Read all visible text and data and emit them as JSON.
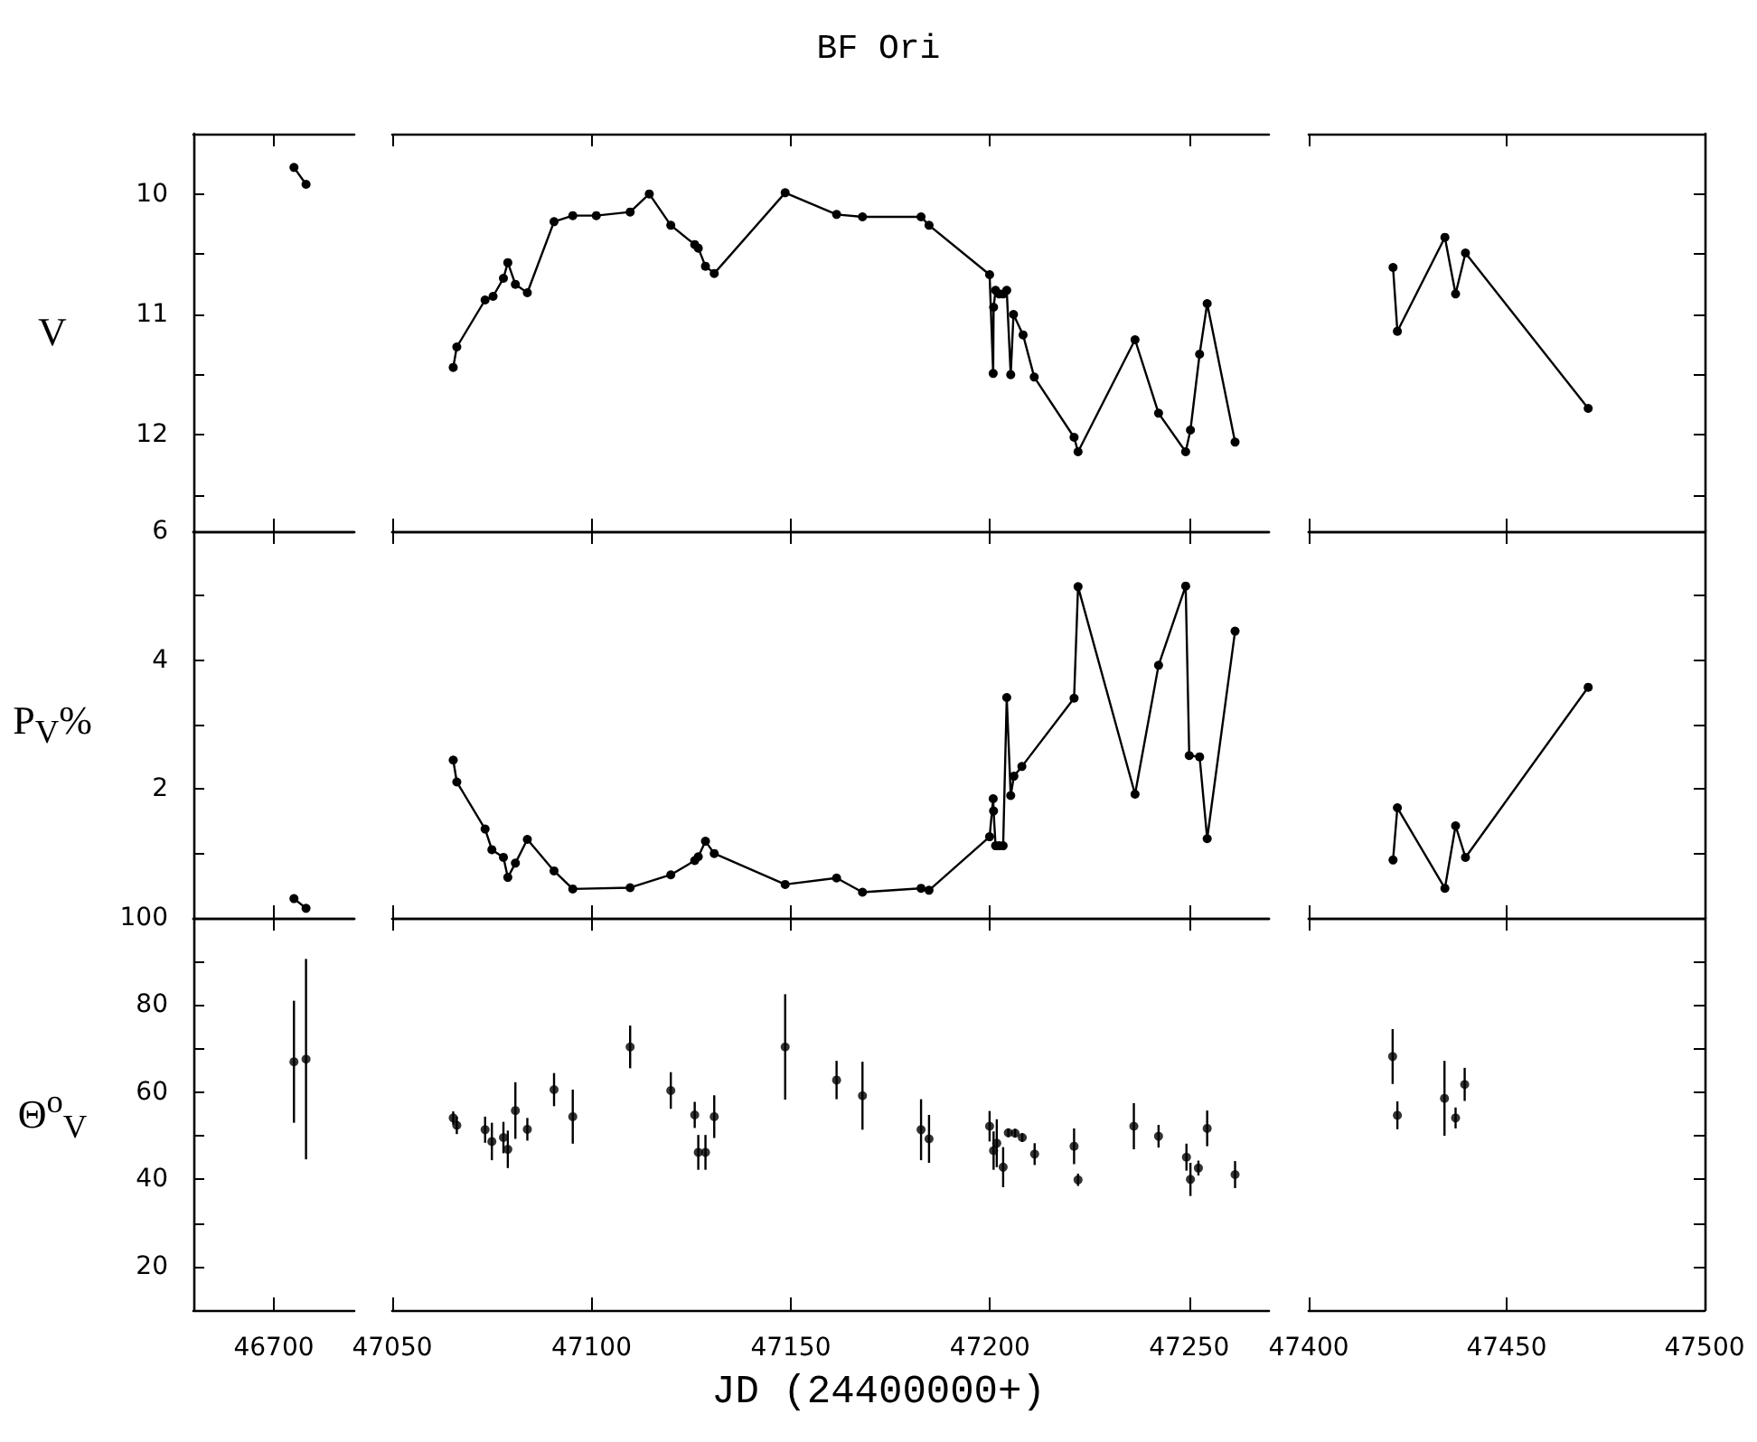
{
  "chart_data": [
    {
      "type": "line",
      "ylabel": "V",
      "categories": [
        null,
        null,
        null,
        null,
        null,
        null,
        null,
        null,
        null,
        null,
        null,
        null,
        null,
        null,
        null,
        null,
        null,
        null,
        null,
        null,
        null,
        null,
        null,
        null,
        null,
        null,
        null,
        null,
        null,
        null,
        null,
        null,
        null,
        null,
        null,
        null,
        null,
        null,
        null,
        null,
        null
      ],
      "values": [
        null,
        null,
        null,
        null,
        null,
        null,
        null,
        null,
        null,
        null,
        null,
        null,
        null,
        null,
        null,
        null,
        null,
        null,
        null,
        null,
        null,
        null,
        null,
        null,
        null,
        9.78,
        null,
        null,
        9.92,
        null,
        null,
        null,
        null,
        null,
        null,
        null,
        null,
        null,
        null,
        null,
        null
      ],
      "color": "#000000",
      "marker": "circle",
      "ylim": [
        12.8,
        9.5
      ],
      "yticks": [
        10,
        {
          "value": 10.5,
          "label": null
        },
        11,
        {
          "value": 11.5,
          "label": null
        },
        12,
        {
          "value": 12.5,
          "label": null
        }
      ],
      "tick_labels": "y"
    },
    {
      "type": "line",
      "title": "BF Ori",
      "x": [
        47065.3,
        47066.2,
        47073.3,
        47075.3,
        47077.9,
        47079.0,
        47080.9,
        47083.9,
        47090.6,
        47095.3,
        47101.2,
        47109.7,
        47114.5,
        47119.9,
        47125.9,
        47126.8,
        47128.6,
        47130.8,
        47148.6,
        47161.5,
        47168.0,
        47182.7,
        47184.7,
        47199.9,
        47200.8,
        47200.9,
        47201.4,
        47202.3,
        47203.3,
        47204.2,
        47205.2,
        47205.9,
        47208.3,
        47211.1,
        47221.1,
        47222.1,
        47236.4,
        47242.3,
        47249.1,
        47250.3,
        47252.6,
        47254.5,
        47261.5
      ],
      "values": [
        11.44,
        11.27,
        10.88,
        10.85,
        10.7,
        10.57,
        10.75,
        10.82,
        10.23,
        10.18,
        10.18,
        10.15,
        10.0,
        10.26,
        10.42,
        10.45,
        10.6,
        10.66,
        9.99,
        10.17,
        10.19,
        10.19,
        10.26,
        10.67,
        11.49,
        10.94,
        10.8,
        10.83,
        10.83,
        10.8,
        11.5,
        11.0,
        11.17,
        11.52,
        12.02,
        12.14,
        11.21,
        11.82,
        12.14,
        11.96,
        11.33,
        10.91,
        12.06
      ],
      "color": "#000000",
      "marker": "circle",
      "xlim": [
        47050,
        47270
      ],
      "xticks": [
        47050,
        47100,
        47150,
        47200,
        47250
      ],
      "ylim": [
        12.8,
        9.5
      ],
      "tick_labels": false
    },
    {
      "type": "line",
      "x": [
        47421.3,
        47422.4,
        47434.4,
        47437.1,
        47439.6,
        47470.6
      ],
      "values": [
        10.61,
        11.14,
        10.36,
        10.83,
        10.49,
        11.78
      ],
      "color": "#000000",
      "marker": "circle",
      "xlim": [
        47400,
        47500
      ],
      "xticks": [
        47400,
        47450,
        47500
      ],
      "ylim": [
        12.8,
        9.5
      ],
      "yticks": [
        10,
        {
          "value": 10.5,
          "label": null
        },
        11,
        {
          "value": 11.5,
          "label": null
        },
        12,
        {
          "value": 12.5,
          "label": null
        }
      ],
      "tick_labels": false
    },
    {
      "type": "line",
      "ylabel": "P$_{V}$%",
      "categories": [
        null,
        null,
        null,
        null,
        null,
        null,
        null,
        null,
        null,
        null,
        null,
        null,
        null,
        null,
        null,
        null,
        null,
        null,
        null,
        null,
        null,
        null,
        null,
        null,
        null,
        null,
        null,
        null,
        null,
        null,
        null,
        null,
        null,
        null,
        null,
        null,
        null,
        null,
        null,
        null,
        null
      ],
      "values": [
        null,
        null,
        null,
        null,
        null,
        null,
        null,
        null,
        null,
        null,
        null,
        null,
        null,
        null,
        null,
        null,
        null,
        null,
        null,
        null,
        null,
        null,
        null,
        null,
        null,
        0.3,
        null,
        null,
        0.15,
        null,
        null,
        null,
        null,
        null,
        null,
        null,
        null,
        null,
        null,
        null,
        null
      ],
      "color": "#000000",
      "marker": "circle",
      "ylim": [
        0,
        6
      ],
      "yticks": [
        {
          "value": 0,
          "label": null
        },
        {
          "value": 1,
          "label": null
        },
        2,
        {
          "value": 3,
          "label": null
        },
        4,
        {
          "value": 5,
          "label": null
        },
        6
      ],
      "tick_labels": "y"
    },
    {
      "type": "line",
      "x": [
        47065.3,
        47066.2,
        47073.3,
        47075.0,
        47077.9,
        47079.0,
        47080.9,
        47083.9,
        47090.6,
        47095.3,
        47109.7,
        47119.9,
        47125.9,
        47126.8,
        47128.6,
        47130.8,
        47148.6,
        47161.5,
        47168.0,
        47182.7,
        47184.7,
        47199.9,
        47200.8,
        47200.9,
        47201.4,
        47202.3,
        47203.3,
        47204.2,
        47205.2,
        47206.0,
        47208.0,
        47221.1,
        47222.1,
        47236.4,
        47242.3,
        47249.1,
        47250.0,
        47252.6,
        47254.5,
        47261.5
      ],
      "values": [
        2.45,
        2.11,
        1.38,
        1.06,
        0.94,
        0.63,
        0.85,
        1.22,
        0.73,
        0.45,
        0.47,
        0.67,
        0.89,
        0.95,
        1.19,
        1.0,
        0.52,
        0.62,
        0.4,
        0.46,
        0.43,
        1.26,
        1.85,
        1.66,
        1.12,
        1.12,
        1.12,
        3.42,
        1.9,
        2.2,
        2.35,
        3.41,
        5.14,
        1.92,
        3.92,
        5.15,
        2.52,
        2.5,
        1.23,
        4.45
      ],
      "color": "#000000",
      "marker": "circle",
      "xlim": [
        47050,
        47270
      ],
      "xticks": [
        47050,
        47100,
        47150,
        47200,
        47250
      ],
      "ylim": [
        0,
        6
      ],
      "tick_labels": false
    },
    {
      "type": "line",
      "x": [
        47421.3,
        47422.4,
        47434.4,
        47437.1,
        47439.6,
        47470.6
      ],
      "values": [
        0.9,
        1.71,
        0.46,
        1.43,
        0.94,
        3.58
      ],
      "color": "#000000",
      "marker": "circle",
      "xlim": [
        47400,
        47500
      ],
      "xticks": [
        47400,
        47450,
        47500
      ],
      "ylim": [
        0,
        6
      ],
      "yticks": [
        {
          "value": 0,
          "label": null
        },
        {
          "value": 1,
          "label": null
        },
        2,
        {
          "value": 3,
          "label": null
        },
        4,
        {
          "value": 5,
          "label": null
        },
        6
      ],
      "tick_labels": false
    },
    {
      "type": "scatter",
      "ylabel": "Θ$^{o}$$_{V}$",
      "categories": [
        null,
        null,
        null,
        null,
        null,
        null,
        null,
        null,
        null,
        null,
        null,
        null,
        null,
        null,
        null,
        null,
        null,
        null,
        null,
        null,
        "46700",
        null,
        null,
        null,
        null,
        null,
        null,
        null,
        null,
        null,
        null,
        null,
        null,
        null,
        null,
        null,
        null,
        null,
        null,
        null,
        null
      ],
      "values": [
        null,
        null,
        null,
        null,
        null,
        null,
        null,
        null,
        null,
        null,
        null,
        null,
        null,
        null,
        null,
        null,
        null,
        null,
        null,
        null,
        null,
        null,
        null,
        null,
        null,
        67.0,
        null,
        null,
        67.6,
        null,
        null,
        null,
        null,
        null,
        null,
        null,
        null,
        null,
        null,
        null,
        null
      ],
      "errors": [
        null,
        null,
        null,
        null,
        null,
        null,
        null,
        null,
        null,
        null,
        null,
        null,
        null,
        null,
        null,
        null,
        null,
        null,
        null,
        null,
        null,
        null,
        null,
        null,
        null,
        14,
        null,
        null,
        23,
        null,
        null,
        null,
        null,
        null,
        null,
        null,
        null,
        null,
        null,
        null,
        null
      ],
      "color": "#000000",
      "marker": "circle",
      "ylim": [
        10,
        100
      ],
      "yticks": [
        20,
        {
          "value": 30,
          "label": null
        },
        40,
        {
          "value": 50,
          "label": null
        },
        60,
        {
          "value": 70,
          "label": null
        },
        80,
        {
          "value": 90,
          "label": null
        },
        100
      ]
    },
    {
      "type": "scatter",
      "xlabel": "JD (24400000+)",
      "x": [
        47065.3,
        47066.2,
        47073.3,
        47075.0,
        47077.9,
        47079.0,
        47080.9,
        47083.9,
        47090.6,
        47095.3,
        47109.7,
        47119.9,
        47125.9,
        47126.8,
        47128.6,
        47130.8,
        47148.6,
        47161.5,
        47168.0,
        47182.7,
        47184.7,
        47199.9,
        47200.9,
        47201.7,
        47203.3,
        47204.6,
        47206.3,
        47208.1,
        47211.2,
        47221.1,
        47222.1,
        47236.1,
        47242.3,
        47249.3,
        47250.3,
        47252.3,
        47254.5,
        47261.5
      ],
      "values": [
        54.1,
        52.4,
        51.4,
        48.7,
        49.6,
        46.9,
        55.8,
        51.5,
        60.6,
        54.4,
        70.4,
        60.4,
        54.8,
        46.2,
        46.2,
        54.4,
        70.4,
        62.8,
        59.2,
        51.4,
        49.3,
        52.2,
        46.6,
        48.3,
        42.8,
        50.7,
        50.6,
        49.6,
        45.8,
        47.6,
        39.9,
        52.2,
        49.9,
        45.1,
        40.0,
        42.6,
        51.7,
        41.1
      ],
      "errors": [
        1.5,
        2,
        3,
        4.3,
        3.6,
        4.3,
        6.5,
        2.6,
        3.8,
        6.2,
        4.9,
        4.2,
        3,
        4,
        4,
        4.9,
        12.1,
        4.4,
        7.8,
        7,
        5.5,
        3.5,
        4.4,
        5.5,
        4.6,
        1,
        1,
        1,
        2.5,
        4.1,
        1.4,
        5.3,
        2.6,
        3.1,
        3.8,
        1.7,
        4.1,
        3.1
      ],
      "color": "#000000",
      "marker": "circle",
      "xlim": [
        47050,
        47270
      ],
      "xticks": [
        47050,
        47100,
        47150,
        47200,
        47250
      ],
      "ylim": [
        10,
        100
      ],
      "tick_labels": "x"
    },
    {
      "type": "scatter",
      "x": [
        47421.2,
        47422.4,
        47434.3,
        47437.1,
        47439.4
      ],
      "values": [
        68.2,
        54.7,
        58.6,
        54.1,
        61.8
      ],
      "errors": [
        6.3,
        3.2,
        8.6,
        2.4,
        3.8
      ],
      "color": "#000000",
      "marker": "circle",
      "xlim": [
        47400,
        47500
      ],
      "xticks": [
        47400,
        47450,
        47500
      ],
      "ylim": [
        10,
        100
      ],
      "yticks": [
        20,
        {
          "value": 30,
          "label": null
        },
        40,
        {
          "value": 50,
          "label": null
        },
        60,
        {
          "value": 70,
          "label": null
        },
        80,
        {
          "value": 90,
          "label": null
        },
        100
      ],
      "tick_labels": "x"
    }
  ]
}
